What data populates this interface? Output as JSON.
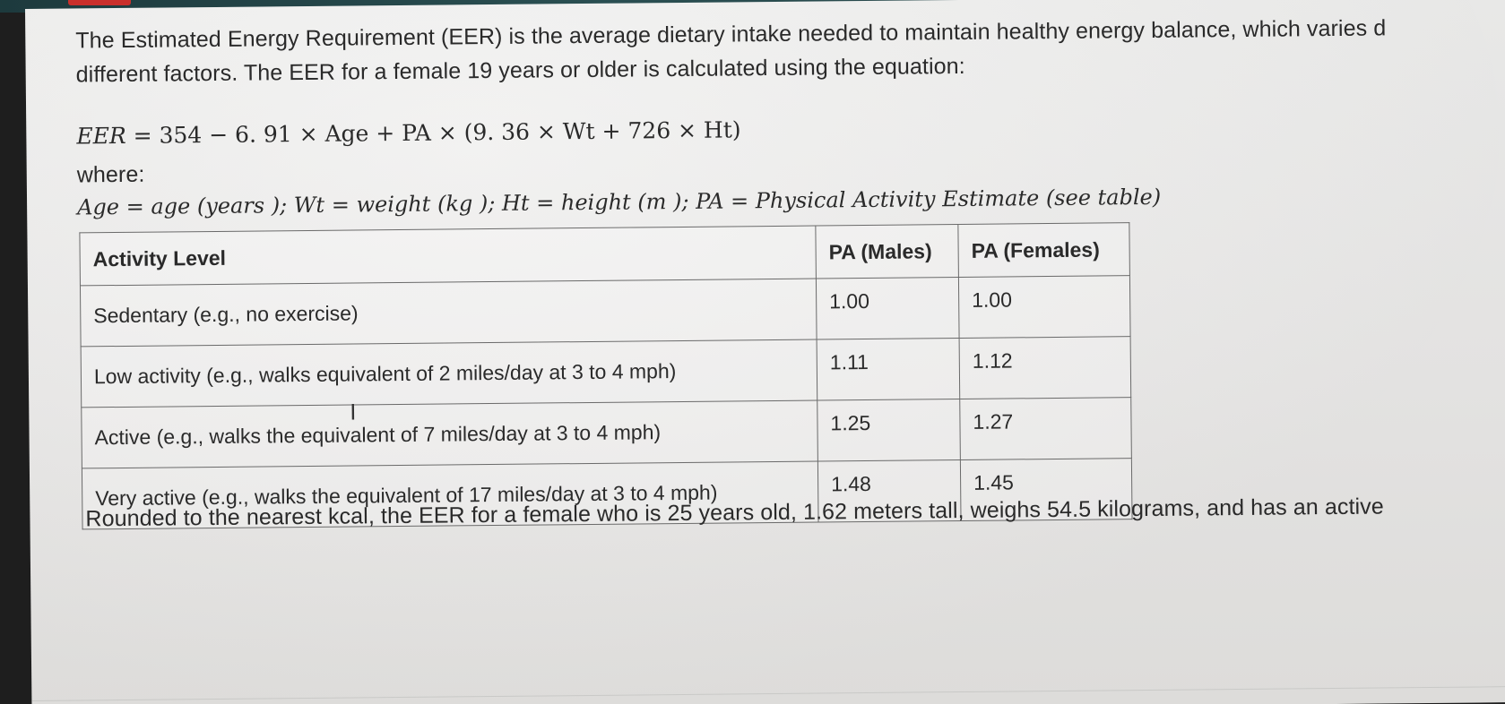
{
  "intro": {
    "line1": "The Estimated Energy Requirement (EER) is the average dietary intake needed to maintain healthy energy balance, which varies d",
    "line2": "different factors. The EER for a female 19 years or older is calculated using the equation:"
  },
  "equation": {
    "lhs": "EER",
    "rhs": "= 354 − 6. 91 × Age + PA × (9. 36 × Wt + 726 × Ht)"
  },
  "where_label": "where:",
  "definitions": "Age = age (years ); Wt = weight (kg ); Ht = height (m ); PA = Physical Activity Estimate (see table)",
  "table": {
    "headers": [
      "Activity Level",
      "PA (Males)",
      "PA (Females)"
    ],
    "rows": [
      [
        "Sedentary (e.g., no exercise)",
        "1.00",
        "1.00"
      ],
      [
        "Low activity (e.g., walks equivalent of 2 miles/day at 3 to 4 mph)",
        "1.11",
        "1.12"
      ],
      [
        "Active (e.g., walks the equivalent of 7 miles/day at 3 to 4 mph)",
        "1.25",
        "1.27"
      ],
      [
        "Very active (e.g., walks the equivalent of 17 miles/day at 3 to 4 mph)",
        "1.48",
        "1.45"
      ]
    ]
  },
  "question": "Rounded to the nearest kcal, the EER for a female who is 25 years old, 1.62 meters tall, weighs 54.5 kilograms, and has an active",
  "cursor_glyph": "I"
}
